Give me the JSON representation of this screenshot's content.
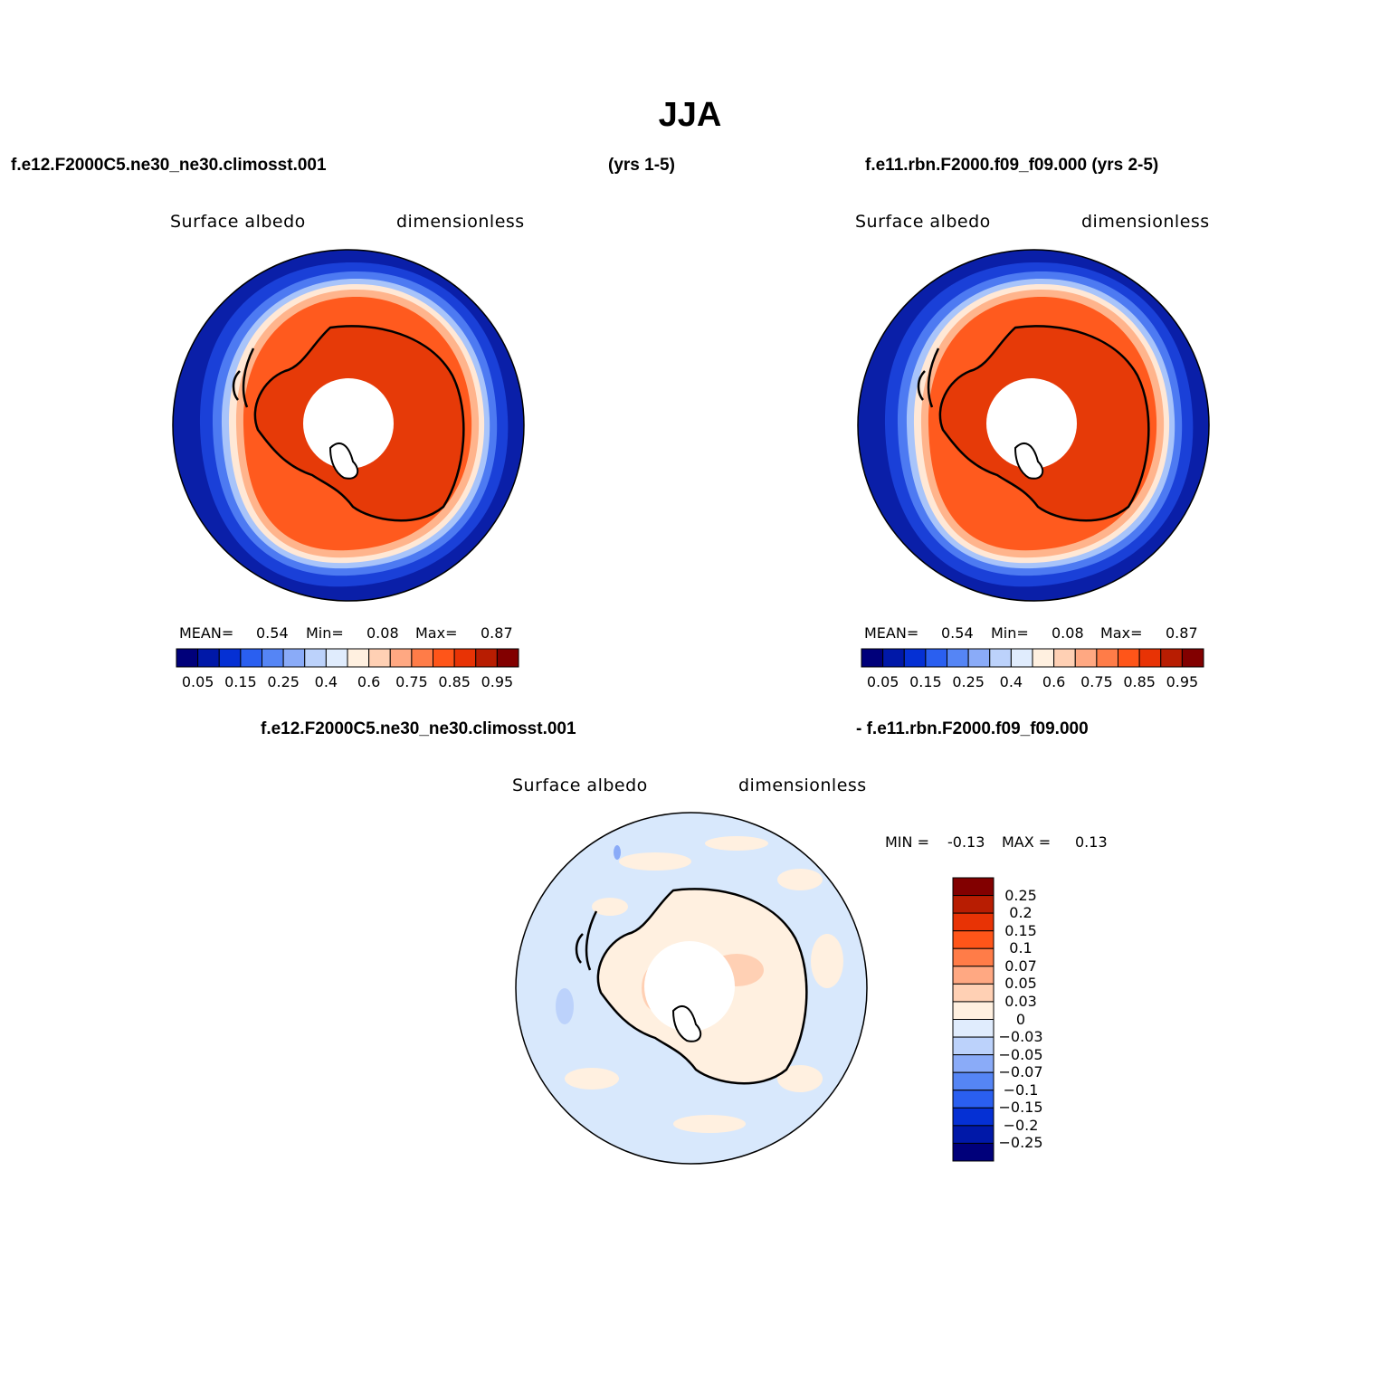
{
  "title": "JJA",
  "panel1": {
    "case": "f.e12.F2000C5.ne30_ne30.climosst.001",
    "years": "(yrs 1-5)",
    "variable": "Surface albedo",
    "units": "dimensionless",
    "stats": {
      "mean_label": "MEAN=",
      "mean": "0.54",
      "min_label": "Min=",
      "min": "0.08",
      "max_label": "Max=",
      "max": "0.87"
    }
  },
  "panel2": {
    "case": "f.e11.rbn.F2000.f09_f09.000 (yrs 2-5)",
    "variable": "Surface albedo",
    "units": "dimensionless",
    "stats": {
      "mean_label": "MEAN=",
      "mean": "0.54",
      "min_label": "Min=",
      "min": "0.08",
      "max_label": "Max=",
      "max": "0.87"
    }
  },
  "panel3": {
    "case_a": "f.e12.F2000C5.ne30_ne30.climosst.001",
    "case_b": "- f.e11.rbn.F2000.f09_f09.000",
    "variable": "Surface albedo",
    "units": "dimensionless",
    "range": {
      "min_label": "MIN =",
      "min": "-0.13",
      "max_label": "MAX =",
      "max": "0.13"
    }
  },
  "abs_colorbar": {
    "labels": [
      "0.05",
      "0.15",
      "0.25",
      "0.4",
      "0.6",
      "0.75",
      "0.85",
      "0.95"
    ],
    "colors": [
      "#00007a",
      "#0018a8",
      "#0530d4",
      "#2a5ff0",
      "#5585f5",
      "#8aabf8",
      "#bcd2fb",
      "#e0ecfd",
      "#fff0e0",
      "#ffd0b4",
      "#ffa882",
      "#ff7c48",
      "#ff5519",
      "#e83305",
      "#b81d02",
      "#820000"
    ]
  },
  "diff_colorbar": {
    "labels": [
      "0.25",
      "0.2",
      "0.15",
      "0.1",
      "0.07",
      "0.05",
      "0.03",
      "0",
      "−0.03",
      "−0.05",
      "−0.07",
      "−0.1",
      "−0.15",
      "−0.2",
      "−0.25"
    ],
    "colors": [
      "#820000",
      "#b81d02",
      "#e83305",
      "#ff5519",
      "#ff7c48",
      "#ffa882",
      "#ffd0b4",
      "#fff0e0",
      "#e0ecfd",
      "#bcd2fb",
      "#8aabf8",
      "#5585f5",
      "#2a5ff0",
      "#0530d4",
      "#0018a8",
      "#00007a"
    ]
  }
}
